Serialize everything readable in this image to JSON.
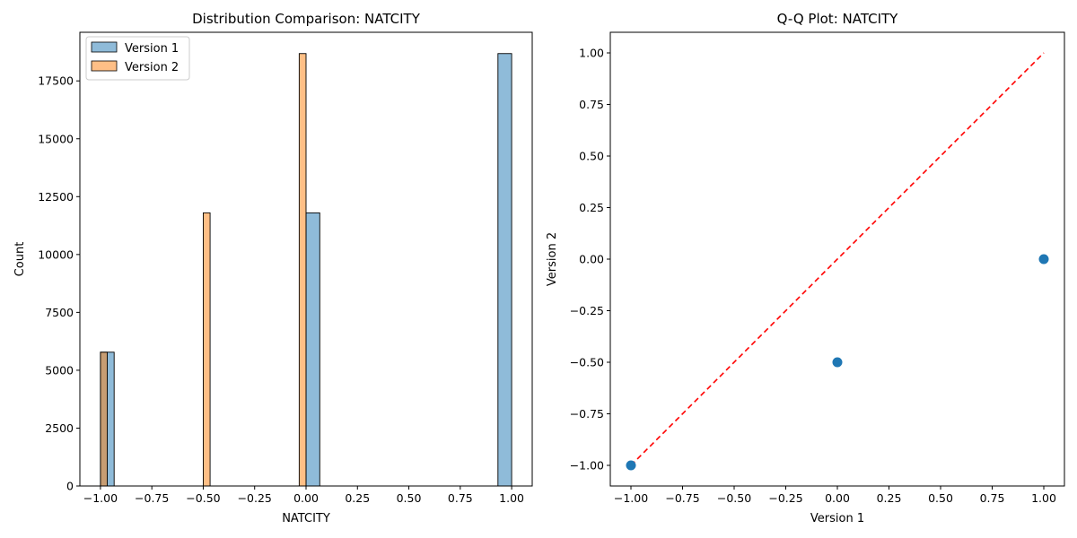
{
  "chart_data": [
    {
      "type": "bar",
      "title": "Distribution Comparison: NATCITY",
      "xlabel": "NATCITY",
      "ylabel": "Count",
      "xlim": [
        -1.1,
        1.1
      ],
      "ylim": [
        0,
        19600
      ],
      "xticks": [
        -1.0,
        -0.75,
        -0.5,
        -0.25,
        0.0,
        0.25,
        0.5,
        0.75,
        1.0
      ],
      "xtick_labels": [
        "−1.00",
        "−0.75",
        "−0.50",
        "−0.25",
        "0.00",
        "0.25",
        "0.50",
        "0.75",
        "1.00"
      ],
      "yticks": [
        0,
        2500,
        5000,
        7500,
        10000,
        12500,
        15000,
        17500
      ],
      "ytick_labels": [
        "0",
        "2500",
        "5000",
        "7500",
        "10000",
        "12500",
        "15000",
        "17500"
      ],
      "legend_position": "top-left",
      "series": [
        {
          "name": "Version 1",
          "color": "#1f77b4",
          "bins": [
            {
              "x0": -1.0,
              "x1": -0.9333,
              "count": 5780
            },
            {
              "x0": 0.0,
              "x1": 0.0667,
              "count": 11800
            },
            {
              "x0": 0.9333,
              "x1": 1.0,
              "count": 18680
            }
          ]
        },
        {
          "name": "Version 2",
          "color": "#ff7f0e",
          "bins": [
            {
              "x0": -1.0,
              "x1": -0.9667,
              "count": 5780
            },
            {
              "x0": -0.5,
              "x1": -0.4667,
              "count": 11800
            },
            {
              "x0": -0.0333,
              "x1": 0.0,
              "count": 18680
            }
          ]
        }
      ]
    },
    {
      "type": "scatter",
      "title": "Q-Q Plot: NATCITY",
      "xlabel": "Version 1",
      "ylabel": "Version 2",
      "xlim": [
        -1.1,
        1.1
      ],
      "ylim": [
        -1.1,
        1.1
      ],
      "xticks": [
        -1.0,
        -0.75,
        -0.5,
        -0.25,
        0.0,
        0.25,
        0.5,
        0.75,
        1.0
      ],
      "xtick_labels": [
        "−1.00",
        "−0.75",
        "−0.50",
        "−0.25",
        "0.00",
        "0.25",
        "0.50",
        "0.75",
        "1.00"
      ],
      "yticks": [
        -1.0,
        -0.75,
        -0.5,
        -0.25,
        0.0,
        0.25,
        0.5,
        0.75,
        1.0
      ],
      "ytick_labels": [
        "−1.00",
        "−0.75",
        "−0.50",
        "−0.25",
        "0.00",
        "0.25",
        "0.50",
        "0.75",
        "1.00"
      ],
      "points": [
        {
          "x": -1.0,
          "y": -1.0
        },
        {
          "x": 0.0,
          "y": -0.5
        },
        {
          "x": 1.0,
          "y": 0.0
        }
      ],
      "point_color": "#1f77b4",
      "reference_line": {
        "x": [
          -1.0,
          1.0
        ],
        "y": [
          -1.0,
          1.0
        ],
        "color": "#ff0000",
        "style": "dashed"
      }
    }
  ]
}
